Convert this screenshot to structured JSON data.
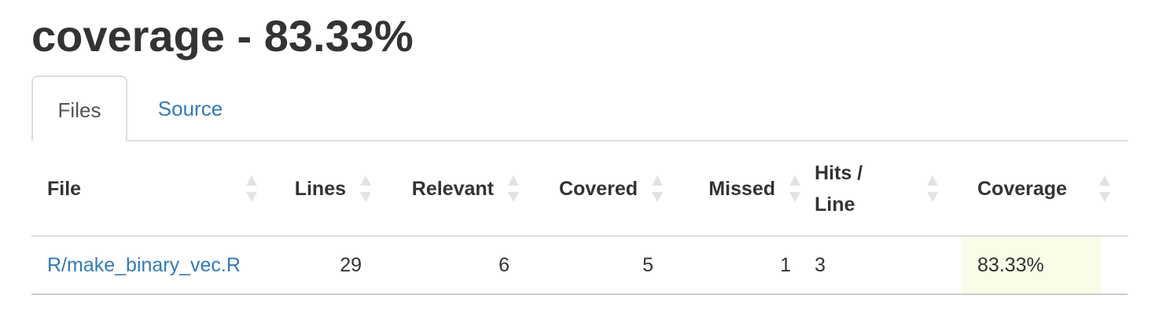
{
  "page": {
    "title": "coverage - 83.33%"
  },
  "tabs": [
    {
      "label": "Files",
      "active": true
    },
    {
      "label": "Source",
      "active": false
    }
  ],
  "table": {
    "headers": {
      "file": "File",
      "lines": "Lines",
      "relevant": "Relevant",
      "covered": "Covered",
      "missed": "Missed",
      "hits_line_1": "Hits /",
      "hits_line_2": "Line",
      "coverage": "Coverage"
    },
    "rows": [
      {
        "file": "R/make_binary_vec.R",
        "lines": "29",
        "relevant": "6",
        "covered": "5",
        "missed": "1",
        "hits_per_line": "3",
        "coverage": "83.33%"
      }
    ]
  },
  "colors": {
    "link": "#337ab7",
    "coverage_high_bg": "#f7fde6",
    "border": "#dddddd"
  }
}
